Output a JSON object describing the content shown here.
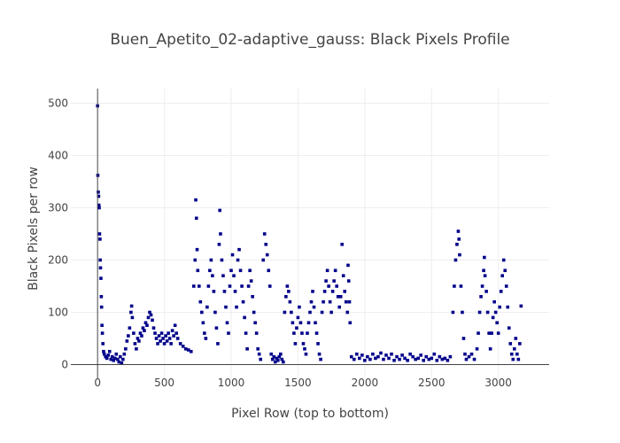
{
  "chart_data": {
    "type": "scatter",
    "title": "Buen_Apetito_02-adaptive_gauss: Black Pixels Profile",
    "xlabel": "Pixel Row (top to bottom)",
    "ylabel": "Black Pixels per row",
    "xlim": [
      -200,
      3380
    ],
    "ylim": [
      -28,
      528
    ],
    "xticks": [
      0,
      500,
      1000,
      1500,
      2000,
      2500,
      3000
    ],
    "yticks": [
      0,
      100,
      200,
      300,
      400,
      500
    ],
    "grid": true,
    "marker_color": "#00008b",
    "series": [
      {
        "name": "",
        "points": [
          [
            0,
            495
          ],
          [
            2,
            362
          ],
          [
            5,
            330
          ],
          [
            8,
            322
          ],
          [
            10,
            305
          ],
          [
            12,
            300
          ],
          [
            15,
            250
          ],
          [
            18,
            240
          ],
          [
            20,
            200
          ],
          [
            22,
            185
          ],
          [
            25,
            165
          ],
          [
            28,
            130
          ],
          [
            30,
            110
          ],
          [
            33,
            75
          ],
          [
            36,
            60
          ],
          [
            40,
            40
          ],
          [
            45,
            25
          ],
          [
            50,
            20
          ],
          [
            60,
            15
          ],
          [
            70,
            12
          ],
          [
            80,
            18
          ],
          [
            90,
            25
          ],
          [
            100,
            10
          ],
          [
            110,
            15
          ],
          [
            120,
            8
          ],
          [
            130,
            12
          ],
          [
            140,
            20
          ],
          [
            150,
            10
          ],
          [
            160,
            5
          ],
          [
            170,
            15
          ],
          [
            180,
            3
          ],
          [
            190,
            10
          ],
          [
            200,
            20
          ],
          [
            210,
            30
          ],
          [
            220,
            45
          ],
          [
            230,
            55
          ],
          [
            240,
            70
          ],
          [
            250,
            100
          ],
          [
            255,
            112
          ],
          [
            260,
            90
          ],
          [
            270,
            60
          ],
          [
            280,
            40
          ],
          [
            290,
            30
          ],
          [
            300,
            50
          ],
          [
            310,
            45
          ],
          [
            320,
            60
          ],
          [
            330,
            55
          ],
          [
            340,
            70
          ],
          [
            350,
            65
          ],
          [
            360,
            80
          ],
          [
            370,
            75
          ],
          [
            380,
            90
          ],
          [
            390,
            100
          ],
          [
            400,
            95
          ],
          [
            410,
            85
          ],
          [
            420,
            70
          ],
          [
            430,
            60
          ],
          [
            440,
            50
          ],
          [
            450,
            40
          ],
          [
            460,
            55
          ],
          [
            470,
            45
          ],
          [
            480,
            60
          ],
          [
            490,
            50
          ],
          [
            500,
            40
          ],
          [
            510,
            55
          ],
          [
            520,
            45
          ],
          [
            530,
            60
          ],
          [
            540,
            50
          ],
          [
            550,
            40
          ],
          [
            560,
            65
          ],
          [
            570,
            55
          ],
          [
            580,
            75
          ],
          [
            590,
            60
          ],
          [
            600,
            50
          ],
          [
            620,
            40
          ],
          [
            640,
            35
          ],
          [
            660,
            30
          ],
          [
            680,
            28
          ],
          [
            700,
            25
          ],
          [
            720,
            150
          ],
          [
            730,
            200
          ],
          [
            735,
            315
          ],
          [
            740,
            280
          ],
          [
            745,
            220
          ],
          [
            750,
            180
          ],
          [
            760,
            150
          ],
          [
            770,
            120
          ],
          [
            780,
            100
          ],
          [
            790,
            80
          ],
          [
            800,
            60
          ],
          [
            810,
            50
          ],
          [
            820,
            110
          ],
          [
            830,
            150
          ],
          [
            840,
            180
          ],
          [
            850,
            200
          ],
          [
            860,
            170
          ],
          [
            870,
            140
          ],
          [
            880,
            100
          ],
          [
            890,
            70
          ],
          [
            900,
            40
          ],
          [
            910,
            230
          ],
          [
            915,
            295
          ],
          [
            920,
            250
          ],
          [
            930,
            200
          ],
          [
            940,
            170
          ],
          [
            950,
            140
          ],
          [
            960,
            110
          ],
          [
            970,
            80
          ],
          [
            980,
            60
          ],
          [
            990,
            150
          ],
          [
            1000,
            180
          ],
          [
            1010,
            210
          ],
          [
            1020,
            170
          ],
          [
            1030,
            140
          ],
          [
            1040,
            110
          ],
          [
            1050,
            200
          ],
          [
            1060,
            220
          ],
          [
            1070,
            180
          ],
          [
            1080,
            150
          ],
          [
            1090,
            120
          ],
          [
            1100,
            90
          ],
          [
            1110,
            60
          ],
          [
            1120,
            30
          ],
          [
            1130,
            150
          ],
          [
            1140,
            180
          ],
          [
            1150,
            160
          ],
          [
            1160,
            130
          ],
          [
            1170,
            100
          ],
          [
            1180,
            80
          ],
          [
            1190,
            60
          ],
          [
            1200,
            30
          ],
          [
            1210,
            20
          ],
          [
            1220,
            10
          ],
          [
            1240,
            200
          ],
          [
            1250,
            250
          ],
          [
            1260,
            230
          ],
          [
            1270,
            210
          ],
          [
            1280,
            180
          ],
          [
            1290,
            150
          ],
          [
            1300,
            20
          ],
          [
            1310,
            10
          ],
          [
            1320,
            15
          ],
          [
            1330,
            5
          ],
          [
            1340,
            12
          ],
          [
            1350,
            8
          ],
          [
            1360,
            15
          ],
          [
            1370,
            20
          ],
          [
            1380,
            10
          ],
          [
            1390,
            5
          ],
          [
            1400,
            100
          ],
          [
            1410,
            130
          ],
          [
            1420,
            150
          ],
          [
            1430,
            140
          ],
          [
            1440,
            120
          ],
          [
            1450,
            100
          ],
          [
            1460,
            80
          ],
          [
            1470,
            60
          ],
          [
            1480,
            40
          ],
          [
            1490,
            70
          ],
          [
            1500,
            90
          ],
          [
            1510,
            110
          ],
          [
            1520,
            80
          ],
          [
            1530,
            60
          ],
          [
            1540,
            40
          ],
          [
            1550,
            30
          ],
          [
            1560,
            20
          ],
          [
            1570,
            60
          ],
          [
            1580,
            80
          ],
          [
            1590,
            100
          ],
          [
            1600,
            120
          ],
          [
            1610,
            140
          ],
          [
            1620,
            110
          ],
          [
            1630,
            80
          ],
          [
            1640,
            60
          ],
          [
            1650,
            40
          ],
          [
            1660,
            20
          ],
          [
            1670,
            10
          ],
          [
            1680,
            100
          ],
          [
            1690,
            120
          ],
          [
            1700,
            140
          ],
          [
            1710,
            160
          ],
          [
            1720,
            180
          ],
          [
            1730,
            150
          ],
          [
            1740,
            120
          ],
          [
            1750,
            100
          ],
          [
            1760,
            140
          ],
          [
            1770,
            160
          ],
          [
            1780,
            180
          ],
          [
            1790,
            150
          ],
          [
            1800,
            130
          ],
          [
            1810,
            110
          ],
          [
            1820,
            130
          ],
          [
            1830,
            230
          ],
          [
            1840,
            170
          ],
          [
            1850,
            140
          ],
          [
            1860,
            120
          ],
          [
            1870,
            100
          ],
          [
            1875,
            190
          ],
          [
            1880,
            160
          ],
          [
            1885,
            120
          ],
          [
            1890,
            80
          ],
          [
            1900,
            15
          ],
          [
            1920,
            10
          ],
          [
            1940,
            20
          ],
          [
            1960,
            12
          ],
          [
            1980,
            18
          ],
          [
            2000,
            8
          ],
          [
            2020,
            15
          ],
          [
            2040,
            10
          ],
          [
            2060,
            20
          ],
          [
            2080,
            12
          ],
          [
            2100,
            15
          ],
          [
            2120,
            22
          ],
          [
            2140,
            10
          ],
          [
            2160,
            18
          ],
          [
            2180,
            12
          ],
          [
            2200,
            20
          ],
          [
            2220,
            8
          ],
          [
            2240,
            15
          ],
          [
            2260,
            10
          ],
          [
            2280,
            18
          ],
          [
            2300,
            12
          ],
          [
            2320,
            8
          ],
          [
            2340,
            20
          ],
          [
            2360,
            15
          ],
          [
            2380,
            10
          ],
          [
            2400,
            12
          ],
          [
            2420,
            18
          ],
          [
            2440,
            8
          ],
          [
            2460,
            15
          ],
          [
            2480,
            10
          ],
          [
            2500,
            12
          ],
          [
            2520,
            20
          ],
          [
            2540,
            8
          ],
          [
            2560,
            15
          ],
          [
            2580,
            10
          ],
          [
            2600,
            12
          ],
          [
            2620,
            8
          ],
          [
            2640,
            15
          ],
          [
            2660,
            100
          ],
          [
            2670,
            150
          ],
          [
            2680,
            200
          ],
          [
            2690,
            230
          ],
          [
            2700,
            255
          ],
          [
            2705,
            240
          ],
          [
            2710,
            210
          ],
          [
            2720,
            150
          ],
          [
            2730,
            100
          ],
          [
            2740,
            50
          ],
          [
            2750,
            20
          ],
          [
            2760,
            10
          ],
          [
            2780,
            15
          ],
          [
            2800,
            20
          ],
          [
            2820,
            10
          ],
          [
            2840,
            30
          ],
          [
            2850,
            60
          ],
          [
            2860,
            100
          ],
          [
            2870,
            130
          ],
          [
            2880,
            150
          ],
          [
            2890,
            180
          ],
          [
            2895,
            205
          ],
          [
            2900,
            170
          ],
          [
            2910,
            140
          ],
          [
            2920,
            100
          ],
          [
            2930,
            60
          ],
          [
            2940,
            30
          ],
          [
            2950,
            60
          ],
          [
            2960,
            90
          ],
          [
            2970,
            120
          ],
          [
            2980,
            100
          ],
          [
            2990,
            80
          ],
          [
            3000,
            60
          ],
          [
            3010,
            110
          ],
          [
            3020,
            140
          ],
          [
            3030,
            170
          ],
          [
            3040,
            200
          ],
          [
            3050,
            180
          ],
          [
            3060,
            150
          ],
          [
            3070,
            110
          ],
          [
            3080,
            70
          ],
          [
            3090,
            40
          ],
          [
            3100,
            20
          ],
          [
            3110,
            10
          ],
          [
            3120,
            30
          ],
          [
            3130,
            50
          ],
          [
            3140,
            20
          ],
          [
            3150,
            10
          ],
          [
            3160,
            40
          ],
          [
            3170,
            112
          ]
        ]
      }
    ]
  }
}
